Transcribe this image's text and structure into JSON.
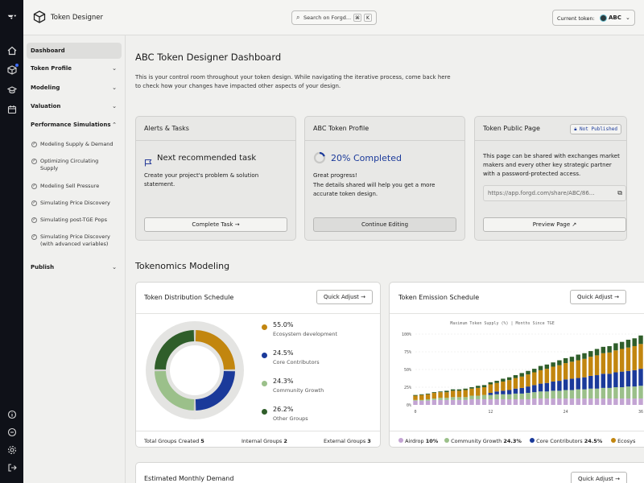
{
  "app": {
    "title": "Token Designer"
  },
  "search": {
    "placeholder": "Search on Forgd...",
    "kbd1": "⌘",
    "kbd2": "K"
  },
  "token_selector": {
    "label": "Current token:",
    "value": "ABC"
  },
  "sidebar": {
    "items": [
      {
        "label": "Dashboard"
      },
      {
        "label": "Token Profile"
      },
      {
        "label": "Modeling"
      },
      {
        "label": "Valuation"
      },
      {
        "label": "Performance Simulations"
      },
      {
        "label": "Publish"
      }
    ],
    "sub_items": [
      {
        "label": "Modeling Supply & Demand"
      },
      {
        "label": "Optimizing Circulating Supply"
      },
      {
        "label": "Modeling Sell Pressure"
      },
      {
        "label": "Simulating Price Discovery"
      },
      {
        "label": "Simulating post-TGE Pops"
      },
      {
        "label": "Simulating Price Discovery (with advanced variables)"
      }
    ]
  },
  "page": {
    "title": "ABC Token Designer Dashboard",
    "intro": "This is your control room throughout your token design. While navigating the iterative process, come back here to check how your changes have impacted other aspects of your design."
  },
  "alerts": {
    "header": "Alerts & Tasks",
    "task_title": "Next recommended task",
    "task_desc": "Create your project's problem & solution statement.",
    "button": "Complete Task →"
  },
  "profile": {
    "header": "ABC Token Profile",
    "progress_label": "20% Completed",
    "progress_fraction": 0.2,
    "headline": "Great progress!",
    "desc": "The details shared will help you get a more accurate token design.",
    "button": "Continue Editing"
  },
  "public_page": {
    "header": "Token Public Page",
    "badge": "Not Published",
    "desc": "This page can be shared with exchanges market makers and every other key strategic partner with a password-protected access.",
    "url": "https://app.forgd.com/share/ABC/86...",
    "button": "Preview Page ↗"
  },
  "section": {
    "title": "Tokenomics Modeling"
  },
  "distribution": {
    "title": "Token Distribution Schedule",
    "quick_adjust": "Quick Adjust →",
    "legend": [
      {
        "pct": "55.0%",
        "label": "Ecosystem development",
        "color": "#c2860f"
      },
      {
        "pct": "24.5%",
        "label": "Core Contributors",
        "color": "#1b3a9a"
      },
      {
        "pct": "24.3%",
        "label": "Community Growth",
        "color": "#9bc08a"
      },
      {
        "pct": "26.2%",
        "label": "Other Groups",
        "color": "#2f5e2a"
      }
    ],
    "footer": {
      "created_label": "Total Groups Created",
      "created_value": "5",
      "internal_label": "Internal Groups",
      "internal_value": "2",
      "external_label": "External Groups",
      "external_value": "3"
    }
  },
  "emission": {
    "title": "Token Emission Schedule",
    "quick_adjust": "Quick Adjust →",
    "chart_caption": "Maximum Token Supply (%)  |  Months Since TGE",
    "legend": [
      {
        "label": "Airdrop",
        "value": "10%",
        "color": "#c3a4d3"
      },
      {
        "label": "Community Growth",
        "value": "24.3%",
        "color": "#9bc08a"
      },
      {
        "label": "Core Contributors",
        "value": "24.5%",
        "color": "#1b3a9a"
      },
      {
        "label": "Ecosys",
        "value": "",
        "color": "#c2860f"
      }
    ]
  },
  "demand": {
    "title": "Estimated Monthly Demand",
    "quick_adjust": "Quick Adjust →"
  },
  "chart_data": {
    "type": "bar",
    "stacked": true,
    "xlabel": "Months Since TGE",
    "ylabel": "Maximum Token Supply (%)",
    "x_ticks": [
      "0",
      "12",
      "24",
      "36"
    ],
    "y_ticks": [
      "25%",
      "50%",
      "75%",
      "100%"
    ],
    "ylim": [
      0,
      100
    ],
    "x": [
      0,
      1,
      2,
      3,
      4,
      5,
      6,
      7,
      8,
      9,
      10,
      11,
      12,
      13,
      14,
      15,
      16,
      17,
      18,
      19,
      20,
      21,
      22,
      23,
      24,
      25,
      26,
      27,
      28,
      29,
      30,
      31,
      32,
      33,
      34,
      35,
      36
    ],
    "series": [
      {
        "name": "Airdrop",
        "color": "#c3a4d3",
        "values": [
          6,
          6,
          6,
          7,
          7,
          7,
          7,
          7,
          7,
          8,
          8,
          8,
          8,
          8,
          8,
          8,
          8,
          8,
          8,
          9,
          9,
          9,
          9,
          9,
          9,
          9,
          9,
          9,
          9,
          9,
          9,
          9,
          9,
          9,
          9,
          9,
          9
        ]
      },
      {
        "name": "Community Growth",
        "color": "#9bc08a",
        "values": [
          1,
          1,
          2,
          2,
          3,
          3,
          4,
          4,
          4,
          5,
          5,
          6,
          6,
          7,
          7,
          7,
          8,
          8,
          9,
          9,
          10,
          10,
          11,
          11,
          12,
          12,
          13,
          13,
          14,
          14,
          15,
          15,
          16,
          16,
          17,
          17,
          18
        ]
      },
      {
        "name": "Core Contributors",
        "color": "#1b3a9a",
        "values": [
          0,
          0,
          0,
          0,
          0,
          0,
          0,
          0,
          0,
          0,
          0,
          0,
          3,
          4,
          5,
          6,
          7,
          8,
          9,
          10,
          11,
          12,
          13,
          14,
          15,
          16,
          16,
          17,
          18,
          19,
          20,
          20,
          21,
          22,
          22,
          23,
          24
        ]
      },
      {
        "name": "Ecosystem development",
        "color": "#c2860f",
        "values": [
          6,
          7,
          7,
          8,
          8,
          8,
          9,
          9,
          10,
          10,
          11,
          11,
          12,
          12,
          13,
          14,
          15,
          16,
          17,
          18,
          19,
          20,
          21,
          22,
          23,
          24,
          25,
          26,
          27,
          28,
          29,
          30,
          31,
          32,
          33,
          34,
          35
        ]
      },
      {
        "name": "Other Groups",
        "color": "#2f5e2a",
        "values": [
          1,
          1,
          1,
          1,
          1,
          2,
          2,
          2,
          2,
          2,
          3,
          3,
          3,
          3,
          4,
          4,
          4,
          5,
          5,
          5,
          6,
          6,
          6,
          7,
          7,
          7,
          8,
          8,
          8,
          9,
          9,
          9,
          10,
          10,
          11,
          11,
          12
        ]
      }
    ]
  }
}
